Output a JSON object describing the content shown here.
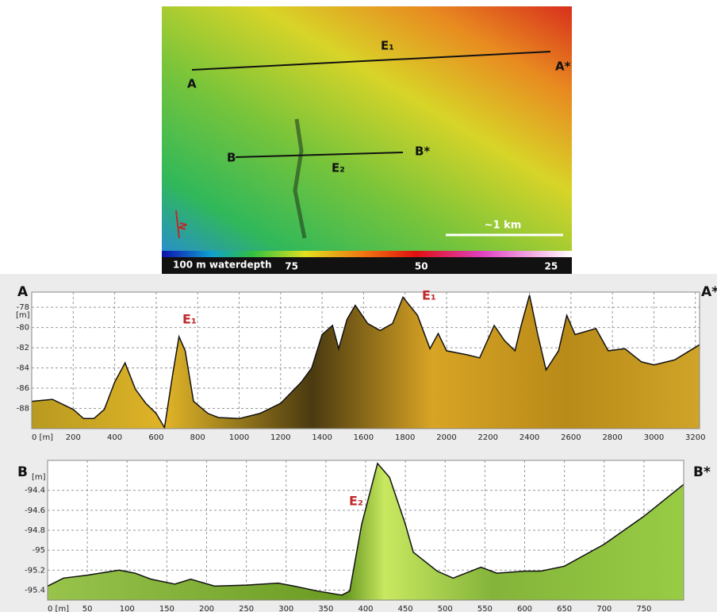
{
  "map": {
    "labels": [
      "A",
      "A*",
      "E₁",
      "B",
      "B*",
      "E₂"
    ],
    "scale_label": "~1 km",
    "north": "N",
    "colorbar_label": "100 m waterdepth",
    "colorbar_ticks": [
      75,
      50,
      25
    ],
    "colorbar_lim": [
      100,
      21
    ]
  },
  "chart_data": [
    {
      "type": "area",
      "left_label": "A",
      "right_label": "A*",
      "ylabel": "[m]",
      "annotations": [
        "E₁",
        "E₁"
      ],
      "x": [
        0,
        100,
        200,
        250,
        300,
        350,
        400,
        450,
        500,
        550,
        600,
        640,
        680,
        710,
        740,
        780,
        850,
        900,
        1000,
        1100,
        1200,
        1300,
        1350,
        1400,
        1450,
        1480,
        1520,
        1560,
        1620,
        1680,
        1740,
        1790,
        1860,
        1920,
        1960,
        2000,
        2100,
        2160,
        2230,
        2280,
        2330,
        2360,
        2400,
        2440,
        2480,
        2540,
        2580,
        2620,
        2720,
        2780,
        2860,
        2940,
        3000,
        3100,
        3220
      ],
      "series": [
        {
          "color": "#c8a020",
          "values": [
            -87.3,
            -87.1,
            -88.1,
            -89.0,
            -89.0,
            -88.1,
            -85.4,
            -83.5,
            -86.1,
            -87.5,
            -88.5,
            -89.9,
            -84.6,
            -80.9,
            -82.3,
            -87.3,
            -88.5,
            -88.9,
            -89.0,
            -88.5,
            -87.5,
            -85.4,
            -84.0,
            -80.7,
            -79.8,
            -82.1,
            -79.2,
            -77.8,
            -79.6,
            -80.3,
            -79.6,
            -77.0,
            -78.8,
            -82.1,
            -80.6,
            -82.3,
            -82.7,
            -83.0,
            -79.8,
            -81.3,
            -82.3,
            -79.8,
            -76.8,
            -80.7,
            -84.2,
            -82.3,
            -78.8,
            -80.7,
            -80.1,
            -82.3,
            -82.1,
            -83.4,
            -83.7,
            -83.2,
            -81.7
          ]
        }
      ],
      "xlim": [
        0,
        3220
      ],
      "ylim": [
        -90,
        -76.5
      ],
      "xticks": [
        {
          "value": 0,
          "label": "0 [m]"
        },
        200,
        400,
        600,
        800,
        1000,
        1200,
        1400,
        1600,
        1800,
        2000,
        2200,
        2400,
        2600,
        2800,
        3000,
        3200
      ],
      "yticks": [
        -78,
        -80,
        -82,
        -84,
        -86,
        -88
      ],
      "grid": true
    },
    {
      "type": "area",
      "left_label": "B",
      "right_label": "B*",
      "ylabel": "[m]",
      "annotations": [
        "E₂"
      ],
      "x": [
        0,
        20,
        50,
        90,
        110,
        130,
        160,
        180,
        210,
        250,
        290,
        310,
        340,
        370,
        380,
        395,
        415,
        430,
        450,
        460,
        490,
        510,
        545,
        565,
        600,
        620,
        650,
        700,
        750,
        800
      ],
      "series": [
        {
          "color": "#8cbc3c",
          "values": [
            -95.36,
            -95.28,
            -95.25,
            -95.2,
            -95.23,
            -95.29,
            -95.34,
            -95.29,
            -95.36,
            -95.35,
            -95.33,
            -95.36,
            -95.41,
            -95.45,
            -95.41,
            -94.74,
            -94.13,
            -94.27,
            -94.74,
            -95.02,
            -95.21,
            -95.28,
            -95.17,
            -95.23,
            -95.21,
            -95.21,
            -95.16,
            -94.94,
            -94.66,
            -94.34
          ]
        }
      ],
      "xlim": [
        0,
        800
      ],
      "ylim": [
        -95.5,
        -94.1
      ],
      "xticks": [
        {
          "value": 0,
          "label": "0 [m]"
        },
        50,
        100,
        150,
        200,
        250,
        300,
        350,
        400,
        450,
        500,
        550,
        600,
        650,
        700,
        750
      ],
      "yticks": [
        -94.4,
        -94.6,
        -94.8,
        -95.0,
        -95.2,
        -95.4
      ],
      "grid": true
    }
  ]
}
